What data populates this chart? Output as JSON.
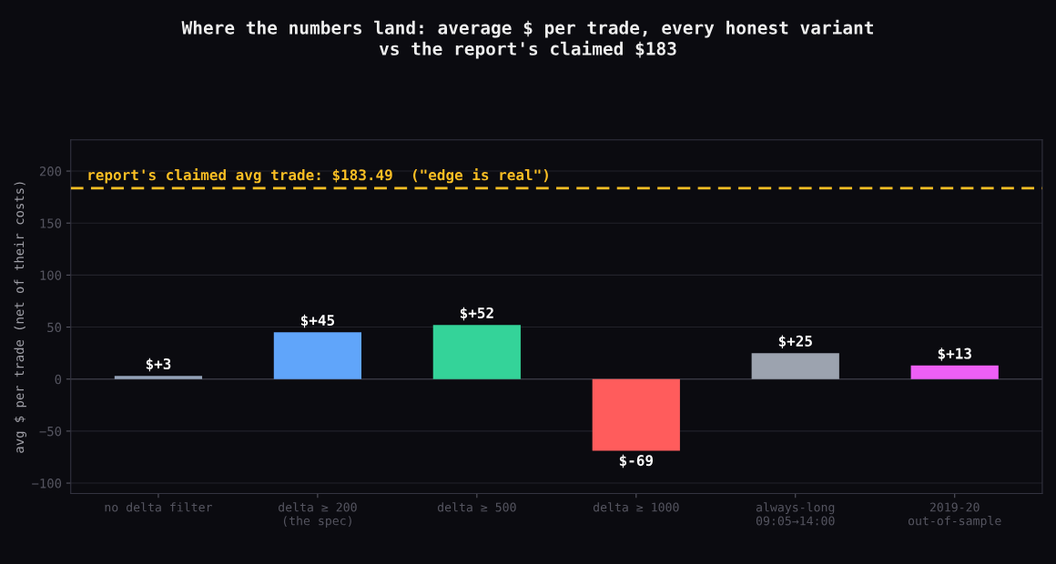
{
  "chart_data": {
    "type": "bar",
    "title": "Where the numbers land: average $ per trade, every honest variant\nvs the report's claimed $183",
    "ylabel": "avg $ per trade (net of their costs)",
    "categories": [
      "no delta filter",
      "delta ≥ 200\n(the spec)",
      "delta ≥ 500",
      "delta ≥ 1000",
      "always-long\n09:05→14:00",
      "2019-20\nout-of-sample"
    ],
    "values": [
      3,
      45,
      52,
      -69,
      25,
      13
    ],
    "colors": [
      "#94a3b8",
      "#60a5fa",
      "#34d399",
      "#ff5c5c",
      "#9ca3af",
      "#ee5ff5"
    ],
    "value_labels": [
      "$+3",
      "$+45",
      "$+52",
      "$-69",
      "$+25",
      "$+13"
    ],
    "ylim": [
      -110,
      230
    ],
    "yticks": [
      {
        "value": -100,
        "label": "−100"
      },
      {
        "value": -50,
        "label": "−50"
      },
      0,
      50,
      100,
      150,
      200
    ],
    "grid": "y",
    "ref_lines": [
      {
        "axis": "y",
        "value": 183.49,
        "label": "report's claimed avg trade: $183.49  (\"edge is real\")",
        "color": "#fbbf24",
        "line_style": "dashed"
      }
    ]
  }
}
